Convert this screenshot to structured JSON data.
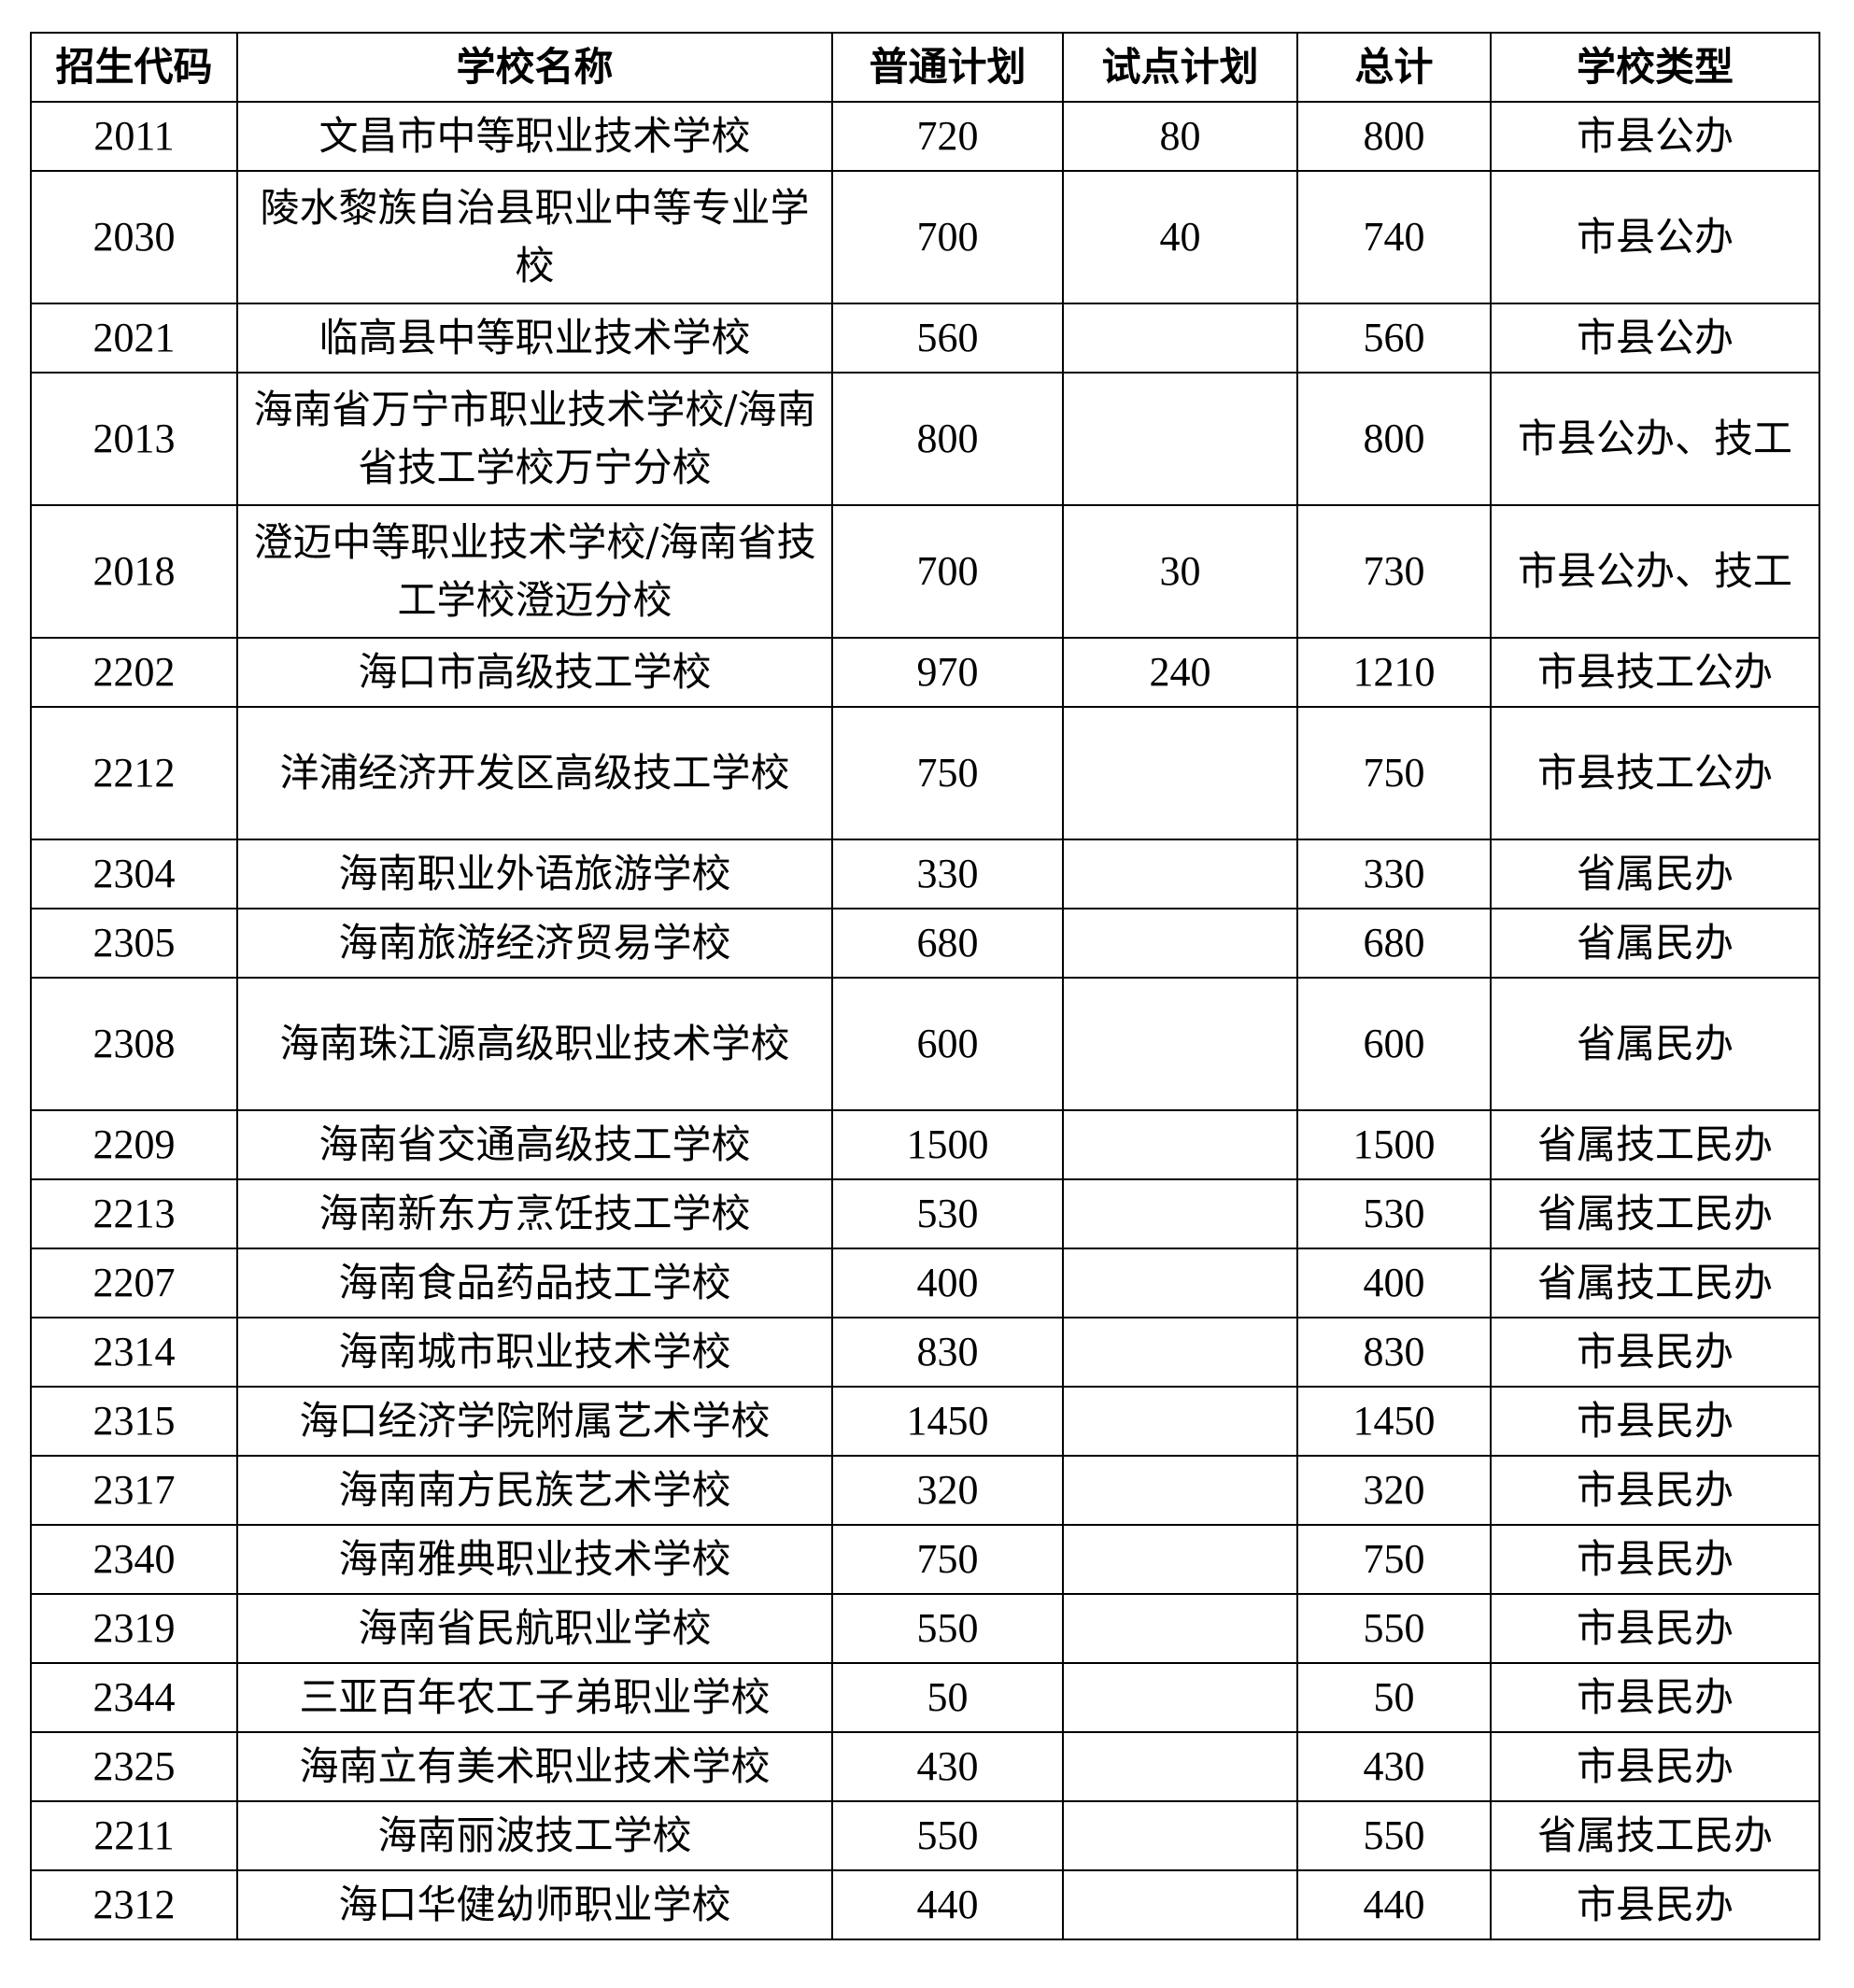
{
  "table": {
    "headers": [
      "招生代码",
      "学校名称",
      "普通计划",
      "试点计划",
      "总计",
      "学校类型"
    ],
    "rows": [
      {
        "code": "2011",
        "name": "文昌市中等职业技术学校",
        "regular": "720",
        "pilot": "80",
        "total": "800",
        "type": "市县公办"
      },
      {
        "code": "2030",
        "name": "陵水黎族自治县职业中等专业学校",
        "regular": "700",
        "pilot": "40",
        "total": "740",
        "type": "市县公办"
      },
      {
        "code": "2021",
        "name": "临高县中等职业技术学校",
        "regular": "560",
        "pilot": "",
        "total": "560",
        "type": "市县公办"
      },
      {
        "code": "2013",
        "name": "海南省万宁市职业技术学校/海南省技工学校万宁分校",
        "regular": "800",
        "pilot": "",
        "total": "800",
        "type": "市县公办、技工"
      },
      {
        "code": "2018",
        "name": "澄迈中等职业技术学校/海南省技工学校澄迈分校",
        "regular": "700",
        "pilot": "30",
        "total": "730",
        "type": "市县公办、技工"
      },
      {
        "code": "2202",
        "name": "海口市高级技工学校",
        "regular": "970",
        "pilot": "240",
        "total": "1210",
        "type": "市县技工公办"
      },
      {
        "code": "2212",
        "name": "洋浦经济开发区高级技工学校",
        "regular": "750",
        "pilot": "",
        "total": "750",
        "type": "市县技工公办"
      },
      {
        "code": "2304",
        "name": "海南职业外语旅游学校",
        "regular": "330",
        "pilot": "",
        "total": "330",
        "type": "省属民办"
      },
      {
        "code": "2305",
        "name": "海南旅游经济贸易学校",
        "regular": "680",
        "pilot": "",
        "total": "680",
        "type": "省属民办"
      },
      {
        "code": "2308",
        "name": "海南珠江源高级职业技术学校",
        "regular": "600",
        "pilot": "",
        "total": "600",
        "type": "省属民办"
      },
      {
        "code": "2209",
        "name": "海南省交通高级技工学校",
        "regular": "1500",
        "pilot": "",
        "total": "1500",
        "type": "省属技工民办"
      },
      {
        "code": "2213",
        "name": "海南新东方烹饪技工学校",
        "regular": "530",
        "pilot": "",
        "total": "530",
        "type": "省属技工民办"
      },
      {
        "code": "2207",
        "name": "海南食品药品技工学校",
        "regular": "400",
        "pilot": "",
        "total": "400",
        "type": "省属技工民办"
      },
      {
        "code": "2314",
        "name": "海南城市职业技术学校",
        "regular": "830",
        "pilot": "",
        "total": "830",
        "type": "市县民办"
      },
      {
        "code": "2315",
        "name": "海口经济学院附属艺术学校",
        "regular": "1450",
        "pilot": "",
        "total": "1450",
        "type": "市县民办"
      },
      {
        "code": "2317",
        "name": "海南南方民族艺术学校",
        "regular": "320",
        "pilot": "",
        "total": "320",
        "type": "市县民办"
      },
      {
        "code": "2340",
        "name": "海南雅典职业技术学校",
        "regular": "750",
        "pilot": "",
        "total": "750",
        "type": "市县民办"
      },
      {
        "code": "2319",
        "name": "海南省民航职业学校",
        "regular": "550",
        "pilot": "",
        "total": "550",
        "type": "市县民办"
      },
      {
        "code": "2344",
        "name": "三亚百年农工子弟职业学校",
        "regular": "50",
        "pilot": "",
        "total": "50",
        "type": "市县民办"
      },
      {
        "code": "2325",
        "name": "海南立有美术职业技术学校",
        "regular": "430",
        "pilot": "",
        "total": "430",
        "type": "市县民办"
      },
      {
        "code": "2211",
        "name": "海南丽波技工学校",
        "regular": "550",
        "pilot": "",
        "total": "550",
        "type": "省属技工民办"
      },
      {
        "code": "2312",
        "name": "海口华健幼师职业学校",
        "regular": "440",
        "pilot": "",
        "total": "440",
        "type": "市县民办"
      }
    ]
  }
}
